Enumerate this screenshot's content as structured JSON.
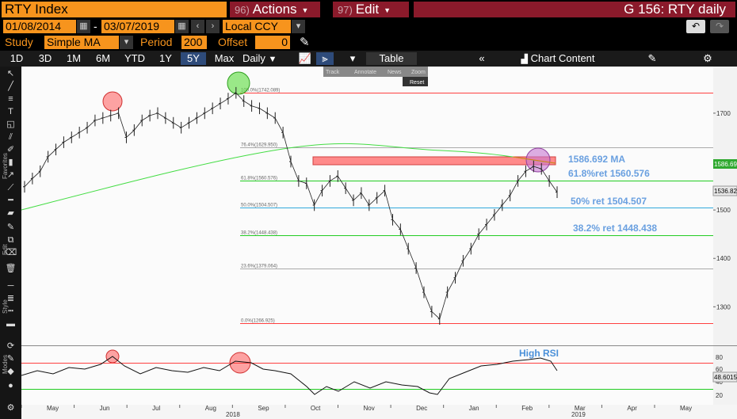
{
  "header": {
    "ticker": "RTY Index",
    "actions": {
      "num": "96)",
      "label": "Actions"
    },
    "edit": {
      "num": "97)",
      "label": "Edit"
    },
    "page_title": "G 156: RTY daily"
  },
  "controls": {
    "start_date": "01/08/2014",
    "date_separator": "-",
    "end_date": "03/07/2019",
    "currency": "Local CCY",
    "study_label": "Study",
    "study_value": "Simple MA",
    "period_label": "Period",
    "period_value": "200",
    "offset_label": "Offset",
    "offset_value": "0"
  },
  "periods": {
    "p1d": "1D",
    "p3d": "3D",
    "p1m": "1M",
    "p6m": "6M",
    "pytd": "YTD",
    "p1y": "1Y",
    "p5y": "5Y",
    "pmax": "Max",
    "freq": "Daily",
    "table": "Table",
    "chart_content": "Chart Content"
  },
  "float_toolbar": {
    "track": "Track",
    "annotate": "Annotate",
    "news": "News",
    "zoom": "Zoom",
    "reset": "Reset"
  },
  "side_labels": {
    "favorites": "Favorites",
    "edit": "Edit",
    "style": "Style",
    "modes": "Modes"
  },
  "chart_data": {
    "type": "line",
    "price_axis": {
      "ylim": [
        1240,
        1780
      ],
      "ticks": [
        "1700",
        "1600",
        "1500",
        "1400",
        "1300"
      ]
    },
    "x_labels": [
      "May",
      "Jun",
      "Jul",
      "Aug",
      "Sep",
      "Oct",
      "Nov",
      "Dec",
      "Jan",
      "Feb",
      "Mar",
      "Apr",
      "May"
    ],
    "year_labels": [
      "2018",
      "2019"
    ],
    "fib_levels": [
      {
        "label": "100.0%(1742.089)",
        "value": 1742.089,
        "color": "#ff4040"
      },
      {
        "label": "76.4%(1629.950)",
        "value": 1629.95,
        "color": "#aaaaaa"
      },
      {
        "label": "61.8%(1560.576)",
        "value": 1560.576,
        "color": "#22cc22"
      },
      {
        "label": "50.0%(1504.507)",
        "value": 1504.507,
        "color": "#33aadd"
      },
      {
        "label": "38.2%(1448.438)",
        "value": 1448.438,
        "color": "#22cc22"
      },
      {
        "label": "23.6%(1379.064)",
        "value": 1379.064,
        "color": "#aaaaaa"
      },
      {
        "label": "0.0%(1266.925)",
        "value": 1266.925,
        "color": "#ff4040"
      }
    ],
    "annotations": {
      "ma": "1586.692 MA",
      "ret618": "61.8%ret 1560.576",
      "ret50": "50% ret 1504.507",
      "ret382": "38.2% ret 1448.438",
      "high_rsi": "High RSI"
    },
    "price_tags": {
      "ma": "1586.692",
      "last": "1536.820"
    },
    "rsi_axis": {
      "ticks": [
        "80",
        "60",
        "40",
        "20"
      ],
      "last": "48.6015"
    },
    "series": [
      {
        "values": [
          1548,
          1565,
          1580,
          1610,
          1625,
          1640,
          1650,
          1660,
          1670,
          1685,
          1690,
          1695,
          1700,
          1650,
          1665,
          1685,
          1695,
          1700,
          1690,
          1680,
          1670,
          1680,
          1690,
          1700,
          1710,
          1720,
          1730,
          1742,
          1725,
          1715,
          1710,
          1700,
          1690,
          1660,
          1600,
          1560,
          1555,
          1510,
          1540,
          1560,
          1570,
          1545,
          1520,
          1535,
          1510,
          1525,
          1540,
          1480,
          1460,
          1420,
          1380,
          1330,
          1290,
          1275,
          1330,
          1360,
          1395,
          1420,
          1450,
          1470,
          1490,
          1510,
          1530,
          1560,
          1580,
          1590,
          1585,
          1560,
          1536.82
        ]
      }
    ]
  }
}
